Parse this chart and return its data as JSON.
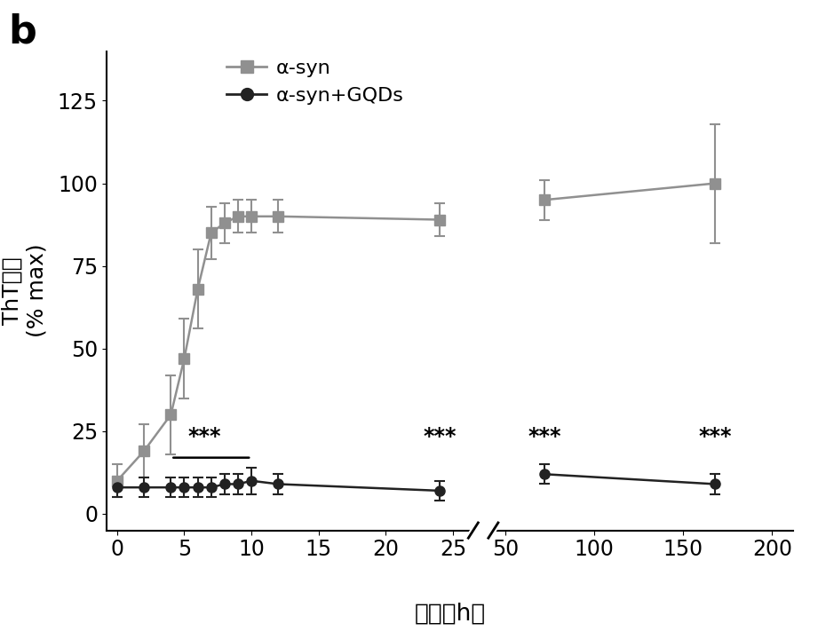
{
  "alpha_syn_x": [
    0,
    2,
    4,
    5,
    6,
    7,
    8,
    9,
    10,
    12,
    24,
    72,
    168
  ],
  "alpha_syn_y": [
    10,
    19,
    30,
    47,
    68,
    85,
    88,
    90,
    90,
    90,
    89,
    95,
    100
  ],
  "alpha_syn_yerr": [
    5,
    8,
    12,
    12,
    12,
    8,
    6,
    5,
    5,
    5,
    5,
    6,
    18
  ],
  "alpha_syn_gqd_x": [
    0,
    2,
    4,
    5,
    6,
    7,
    8,
    9,
    10,
    12,
    24,
    72,
    168
  ],
  "alpha_syn_gqd_y": [
    8,
    8,
    8,
    8,
    8,
    8,
    9,
    9,
    10,
    9,
    7,
    12,
    9
  ],
  "alpha_syn_gqd_yerr": [
    3,
    3,
    3,
    3,
    3,
    3,
    3,
    3,
    4,
    3,
    3,
    3,
    3
  ],
  "color_asyn": "#909090",
  "color_gqd": "#222222",
  "ylabel_line1": "ThT荧光",
  "ylabel_line2": "(% max)",
  "xlabel": "时间（h）",
  "panel_label": "b",
  "legend_label_asyn": "α-syn",
  "legend_label_gqd": "α-syn+GQDs",
  "ylim": [
    -5,
    140
  ],
  "yticks": [
    0,
    25,
    50,
    75,
    100,
    125
  ],
  "xticks_left": [
    0,
    5,
    10,
    15,
    20,
    25
  ],
  "xticks_right": [
    50,
    100,
    150,
    200
  ],
  "sig_bracket_x1": 4,
  "sig_bracket_x2": 10,
  "sig_bracket_y": 17,
  "sig_star1_x": 6.5,
  "sig_star1_y": 20,
  "sig_star2_x": 24,
  "sig_star2_y": 20,
  "sig_star3_x": 72,
  "sig_star3_y": 20,
  "sig_star4_x": 168,
  "sig_star4_y": 20,
  "background_color": "#ffffff"
}
